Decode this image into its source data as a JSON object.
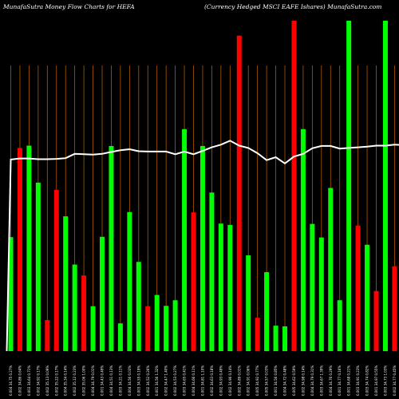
{
  "header": {
    "left": "MunafaSutra  Money Flow  Charts for HEFA",
    "right": "(Currency Hedged MSCI EAFE Ishares) MunafaSutra.com"
  },
  "colors": {
    "background": "#000000",
    "up": "#00ff00",
    "down": "#ff0000",
    "vertical_guides": "#b05a00",
    "line": "#ffffff"
  },
  "chart_data": {
    "type": "bar",
    "title": "",
    "xlabel": "",
    "ylabel": "",
    "ylim": [
      0,
      100
    ],
    "grid": "vertical",
    "overlay_series": "line",
    "categories": [
      "0.004 34.75 0.27%",
      "0.002 34.86 0.64%",
      "0.003 34.64 0.71%",
      "0.002 34.92 0.17%",
      "0.002 35.13 0.09%",
      "0.002 35.22 0.17%",
      "0.004 35.34 0.14%",
      "0.002 35.12 0.23%",
      "0.002 35.06 1.00%",
      "0.004 34.79 0.01%",
      "0.001 34.43 0.49%",
      "0.004 34.51 0.13%",
      "0.003 34.21 0.11%",
      "0.004 34.56 0.03%",
      "0.003 34.55 0.19%",
      "0.002 34.52 0.26%",
      "0.001 34.56 1.32%",
      "0.002 34.47 1.40%",
      "0.002 34.53 0.27%",
      "0.003 34.65 0.41%",
      "0.004 34.66 0.11%",
      "0.001 34.81 1.10%",
      "0.002 34.63 0.18%",
      "0.002 34.93 0.49%",
      "0.002 34.96 0.14%",
      "0.002 34.89 0.01%",
      "0.002 34.91 0.06%",
      "0.005 34.92 0.77%",
      "0.005 34.57 0.03%",
      "0.001 34.56 0.85%",
      "0.004 34.72 0.48%",
      "0.005 34.62 0.59%",
      "0.002 34.98 0.14%",
      "0.004 34.79 0.31%",
      "0.003 34.67 1.39%",
      "0.004 34.76 0.29%",
      "0.001 34.77 0.16%",
      "0.001 34.68 0.21%",
      "0.003 34.91 0.23%",
      "0.003 34.74 0.82%",
      "0.001 34.97 0.55%",
      "0.003 34.73 1.03%",
      "0.002 34.77 0.45%",
      "0.002 34.69 0.28%",
      "0.002 34.38 0.03%",
      "0.002 34.38 1.13%",
      "0.003 34.55 0.19%",
      "0.002 34.75 0.01%",
      "0.002 34.89 0.27%",
      "0.002 34.63 0.61%"
    ],
    "series": [
      {
        "type": "bar",
        "values": [
          34.5,
          61.5,
          62.2,
          51.0,
          9.4,
          48.8,
          40.8,
          26.2,
          22.9,
          13.6,
          34.6,
          62.1,
          8.4,
          42.1,
          27.0,
          13.6,
          17.0,
          13.7,
          15.4,
          67.2,
          42.0,
          62.1,
          48.0,
          38.6,
          38.2,
          95.5,
          29.0,
          10.1,
          23.9,
          7.7,
          7.5,
          100,
          67.2,
          38.5,
          34.4,
          49.4,
          15.4,
          100,
          38.0,
          32.2,
          18.2,
          100,
          25.7,
          49.8,
          19.4,
          0,
          0,
          0,
          0,
          0
        ],
        "direction": [
          "up",
          "down",
          "up",
          "up",
          "down",
          "down",
          "up",
          "up",
          "down",
          "up",
          "up",
          "up",
          "up",
          "up",
          "up",
          "down",
          "up",
          "up",
          "up",
          "up",
          "down",
          "up",
          "up",
          "up",
          "up",
          "down",
          "up",
          "down",
          "up",
          "up",
          "up",
          "down",
          "up",
          "up",
          "up",
          "up",
          "up",
          "up",
          "down",
          "up",
          "down",
          "up",
          "down",
          "up",
          "down",
          "up",
          "up",
          "up",
          "up",
          "up"
        ]
      },
      {
        "type": "line",
        "values": [
          58.0,
          58.3,
          58.3,
          58.1,
          58.1,
          58.2,
          58.4,
          59.7,
          59.6,
          59.5,
          59.7,
          60.3,
          60.8,
          61.1,
          60.5,
          60.4,
          60.4,
          60.4,
          59.6,
          60.4,
          59.6,
          60.6,
          61.7,
          62.5,
          63.7,
          62.2,
          61.5,
          59.9,
          57.8,
          58.7,
          56.8,
          58.9,
          59.7,
          61.4,
          62.1,
          62.1,
          61.3,
          61.5,
          61.7,
          61.9,
          62.2,
          62.2,
          62.5,
          62.4,
          62.4,
          62.6,
          62.6,
          62.6,
          62.6,
          62.6
        ]
      }
    ]
  }
}
